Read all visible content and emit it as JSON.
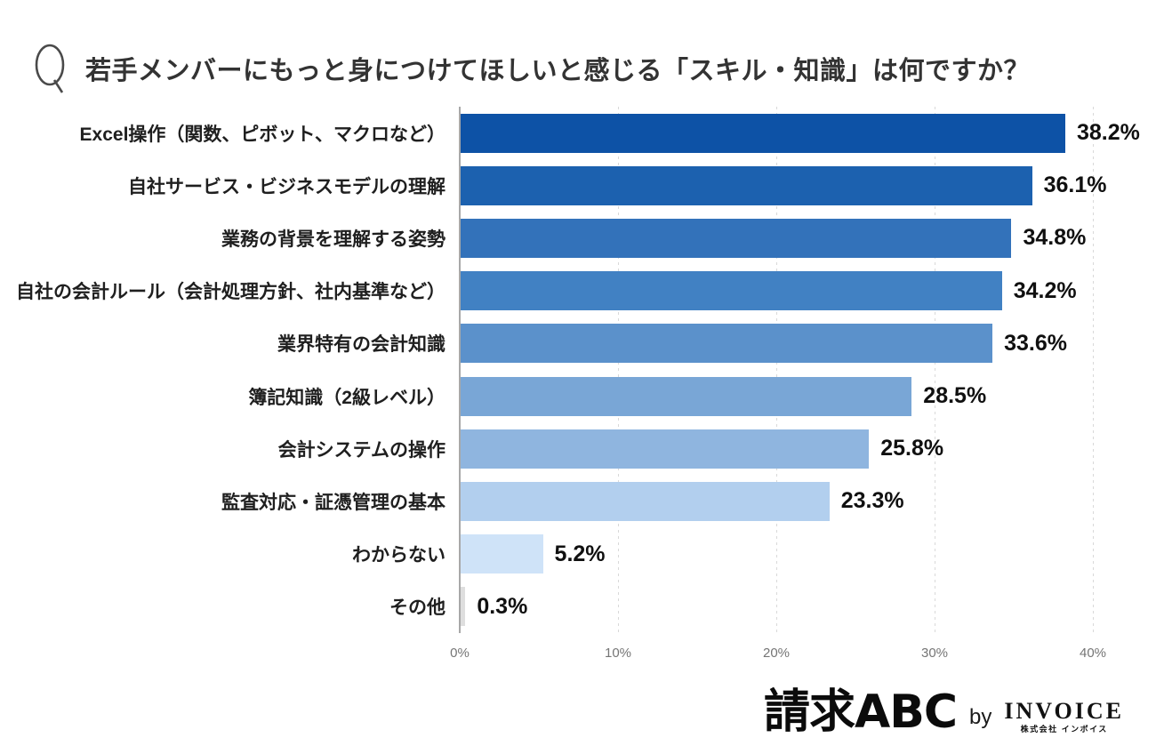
{
  "title": {
    "q_mark": "Q",
    "text": "若手メンバーにもっと身につけてほしいと感じる「スキル・知識」は何ですか？"
  },
  "chart_data": {
    "type": "bar",
    "orientation": "horizontal",
    "title": "若手メンバーにもっと身につけてほしいと感じる「スキル・知識」は何ですか？",
    "categories": [
      "Excel操作（関数、ピボット、マクロなど）",
      "自社サービス・ビジネスモデルの理解",
      "業務の背景を理解する姿勢",
      "自社の会計ルール（会計処理方針、社内基準など）",
      "業界特有の会計知識",
      "簿記知識（2級レベル）",
      "会計システムの操作",
      "監査対応・証憑管理の基本",
      "わからない",
      "その他"
    ],
    "values": [
      38.2,
      36.1,
      34.8,
      34.2,
      33.6,
      28.5,
      25.8,
      23.3,
      5.2,
      0.3
    ],
    "value_labels": [
      "38.2%",
      "36.1%",
      "34.8%",
      "34.2%",
      "33.6%",
      "28.5%",
      "25.8%",
      "23.3%",
      "5.2%",
      "0.3%"
    ],
    "bar_colors": [
      "#0d52a6",
      "#1c61af",
      "#3372ba",
      "#4181c3",
      "#5b91cb",
      "#79a6d6",
      "#8fb5df",
      "#b2cfee",
      "#cfe3f8",
      "#dedede"
    ],
    "xlim": [
      0,
      40
    ],
    "x_ticks": [
      "0%",
      "10%",
      "20%",
      "30%",
      "40%"
    ],
    "grid": "dashed-vertical-gridlines",
    "axis_color": "#a8a8a8",
    "gridline_color": "#d9d9d9"
  },
  "footer": {
    "brand": "請求ABC",
    "by": "by",
    "company": "INVOICE",
    "company_sub": "株式会社 インボイス"
  }
}
